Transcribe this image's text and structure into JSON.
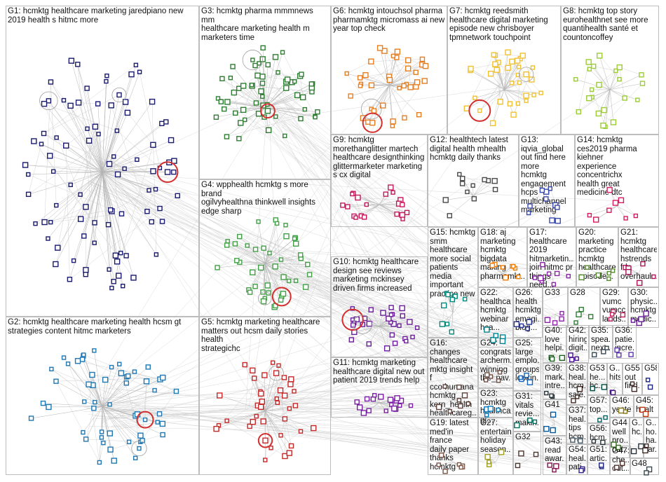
{
  "groups": [
    {
      "id": "G1",
      "label": "G1: hcmktg healthcare marketing jaredpiano new\n2019 health s hitmc more",
      "color": "#1a1a6e"
    },
    {
      "id": "G2",
      "label": "G2: hcmktg healthcare marketing health hcsm gt\nstrategies content hitmc marketers",
      "color": "#1f78b4"
    },
    {
      "id": "G3",
      "label": "G3: hcmktg pharma mmmnews mm\nhealthcare marketing health m\nmarketers time",
      "color": "#2e7d32"
    },
    {
      "id": "G4",
      "label": "G4: wpphealth hcmktg s more brand\nogilvyhealthna thinkwell insights\nedge sharp",
      "color": "#43a047"
    },
    {
      "id": "G5",
      "label": "G5: hcmktg marketing healthcare\nmatters out hcsm daily stories health\nstrategichc",
      "color": "#c62828"
    },
    {
      "id": "G6",
      "label": "G6: hcmktg intouchsol pharma\npharmamktg micromass ai new\nyear top check",
      "color": "#e67e22"
    },
    {
      "id": "G7",
      "label": "G7: hcmktg reedsmith\nhealthcare digital marketing\nepisode new chrisboyer\ntpmnetwork touchpoint",
      "color": "#f2c12e"
    },
    {
      "id": "G8",
      "label": "G8: hcmktg top story\neurohealthnet see more\nquantihealth santé et\ncountoncoffey",
      "color": "#9acd32"
    },
    {
      "id": "G9",
      "label": "G9: hcmktg\nmorethanglitter martech\nhealthcare designthinking\nglittermarketer marketing\ns cx digital",
      "color": "#c2185b"
    },
    {
      "id": "G10",
      "label": "G10: hcmktg healthcare\ndesign see reviews\nmarketing mckinsey\ndriven firms increased",
      "color": "#6a1b9a"
    },
    {
      "id": "G11",
      "label": "G11: hcmktg marketing\nhealthcare digital new out\npatient 2019 trends help",
      "color": "#7b1fa2"
    },
    {
      "id": "G12",
      "label": "G12: healthtech latest\ndigital health mhealth\nhcmktg daily thanks",
      "color": "#4a4a4a"
    },
    {
      "id": "G13",
      "label": "G13: iqvia_global\nout find here more\nhcmktg engagement\nhcps multichannel\nmarketing",
      "color": "#3949ab"
    },
    {
      "id": "G14",
      "label": "G14: hcmktg\nces2019 pharma\nkiehner\nexperience\nconcentrichx\nhealth great\nmedicine dtc",
      "color": "#d81b60"
    },
    {
      "id": "G15",
      "label": "G15: hcmktg\nsmm\nhealthcare\nmore social\npatients\nmedia\nimportant\npractice new",
      "color": "#00897b"
    },
    {
      "id": "G16",
      "label": "G16: changes\nhealthcare\nmktg insight f\ncco humana\nhcmktg\nkern_health\nhealthcareg...",
      "color": "#5d4037"
    },
    {
      "id": "G17",
      "label": "G17:\nhealthcare\n2019\nhitmarketin...\njoin hitmc pr\nthings need...",
      "color": "#8e24aa"
    },
    {
      "id": "G18",
      "label": "G18: aj\nmarketing\nhcmktg\nbigdata\nmaking\npharmamkt...",
      "color": "#f57c00"
    },
    {
      "id": "G19",
      "label": "G19: latest\nmed'in france\ndaily paper\nthanks\nhcmktg",
      "color": "#795548"
    },
    {
      "id": "G20",
      "label": "G20:\nmarketing\npractice\nhcmktg\nhealthcare\nepisode...",
      "color": "#558b2f"
    },
    {
      "id": "G21",
      "label": "G21:\nhcmktg\nhealthcare\nhstrends\nfda\noverhaul...",
      "color": "#ad1457"
    },
    {
      "id": "G22",
      "label": "G22:\nhealthca...\nhcmktg\nwebinar\nhca...",
      "color": "#00838f"
    },
    {
      "id": "G23",
      "label": "G23:\nhcmktg\nhealthca...\ngt...",
      "color": "#0277bd"
    },
    {
      "id": "G24",
      "label": "G24:\ncongrats\narcherm...\nwinning\nthe_nav...",
      "color": "#6d4c41"
    },
    {
      "id": "G25",
      "label": "G25:\nlarge\nemplo...\ngroups\nlookin...",
      "color": "#1565c0"
    },
    {
      "id": "G26",
      "label": "G26:\nhealth\nhcmktg\nemagi...\nblog...",
      "color": "#283593"
    },
    {
      "id": "G27",
      "label": "G27:\nentertain...\nholiday\nseason...",
      "color": "#9e9d24"
    },
    {
      "id": "G28",
      "label": "G28",
      "color": "#2e7d32"
    },
    {
      "id": "G29",
      "label": "G29:\nvumc\nvumcc...\nlands...",
      "color": "#c2185b"
    },
    {
      "id": "G30",
      "label": "G30:\nphysic...\nhcmktg\nmedic...",
      "color": "#6a1b9a"
    },
    {
      "id": "G31",
      "label": "G31:\nvitals\nrevie...\nmakin...",
      "color": "#00695c"
    },
    {
      "id": "G32",
      "label": "G32",
      "color": "#4e342e"
    },
    {
      "id": "G33",
      "label": "G33",
      "color": "#8e24aa"
    },
    {
      "id": "G35",
      "label": "G35:\nspea...\nnext...",
      "color": "#37474f"
    },
    {
      "id": "G36",
      "label": "G36:\npatie...\nincre...",
      "color": "#5e35b1"
    },
    {
      "id": "G37",
      "label": "G37:\nheal...\ntips\nhcm...",
      "color": "#455a64"
    },
    {
      "id": "G38",
      "label": "G38:\nheal...\nhcm...\nsale...",
      "color": "#3e2723"
    },
    {
      "id": "G39",
      "label": "G39:\nmark...\nintre...",
      "color": "#263238"
    },
    {
      "id": "G40",
      "label": "G40:\nlove\nhelpi...",
      "color": "#1b5e20"
    },
    {
      "id": "G41",
      "label": "G41",
      "color": "#01579b"
    },
    {
      "id": "G42",
      "label": "G42:\nhiring\ndigit...",
      "color": "#4a148c"
    },
    {
      "id": "G43",
      "label": "G43:\nread\nawar...",
      "color": "#880e4f"
    },
    {
      "id": "G44",
      "label": "G44:\nwell\npro...\nout...",
      "color": "#33691e"
    },
    {
      "id": "G45",
      "label": "G45:\nhealt",
      "color": "#bf360c"
    },
    {
      "id": "G46",
      "label": "G46:\nyeste...",
      "color": "#827717"
    },
    {
      "id": "G47",
      "label": "G47:\nche...\nout...",
      "color": "#4e342e"
    },
    {
      "id": "G48",
      "label": "G48",
      "color": "#37474f"
    },
    {
      "id": "G51",
      "label": "G51:\nartic...",
      "color": "#1a237e"
    },
    {
      "id": "G53",
      "label": "G53:\nhe...\nhc...",
      "color": "#004d40"
    },
    {
      "id": "G54",
      "label": "G54:\nheal...\npati...",
      "color": "#311b92"
    },
    {
      "id": "G55",
      "label": "G55:\nout\nfind...",
      "color": "#3e2723"
    },
    {
      "id": "G56",
      "label": "G56:\nhcm...",
      "color": "#263238"
    },
    {
      "id": "G57",
      "label": "G57:\ntop...",
      "color": "#006064"
    },
    {
      "id": "G58",
      "label": "G58",
      "color": "#1a237e"
    },
    {
      "id": "Gx1",
      "label": "G...\nhits...",
      "color": "#4a148c"
    },
    {
      "id": "Gx2",
      "label": "G...\nhc...",
      "color": "#263238"
    },
    {
      "id": "Gx3",
      "label": "G...\nho...\nha...\ntar...",
      "color": "#3e2723"
    }
  ]
}
